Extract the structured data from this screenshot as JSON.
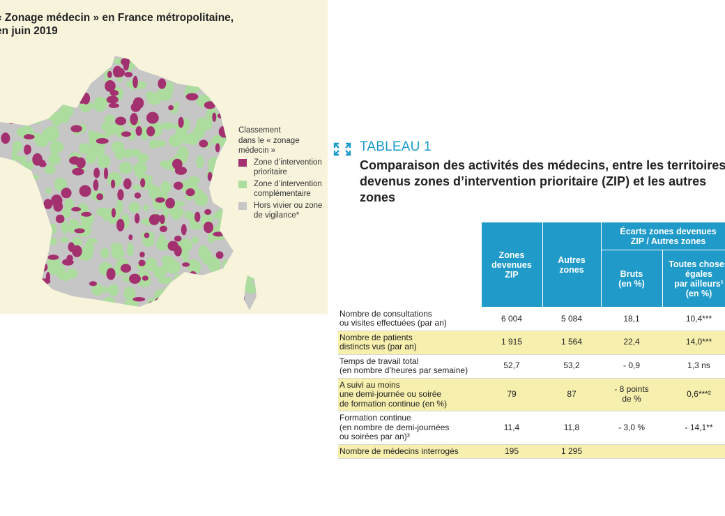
{
  "map_panel": {
    "title": [
      "« Zonage médecin » en France métropolitaine,",
      "en juin 2019"
    ],
    "legend": {
      "heading": [
        "Classement",
        "dans le « zonage",
        "médecin »"
      ],
      "items": [
        {
          "label": [
            "Zone d’intervention",
            "prioritaire"
          ],
          "color": "#a3306f"
        },
        {
          "label": [
            "Zone d’intervention",
            "complémentaire"
          ],
          "color": "#acdc9e"
        },
        {
          "label": [
            "Hors vivier ou zone",
            "de vigilance*"
          ],
          "color": "#c6c6c6"
        }
      ]
    }
  },
  "table_panel": {
    "label": "TABLEAU 1",
    "title": [
      "Comparaison des activités des médecins, entre les territoires",
      "devenus zones d’intervention prioritaire (ZIP) et les autres",
      "zones"
    ],
    "table": {
      "header": {
        "zip": [
          "Zones",
          "devenues",
          "ZIP"
        ],
        "autres": [
          "Autres",
          "zones"
        ],
        "group": [
          "Écarts zones devenues",
          "ZIP / Autres zones"
        ],
        "bruts": [
          "Bruts",
          "(en %)"
        ],
        "toutes": [
          "Toutes choses",
          "égales",
          "par ailleurs¹",
          "(en %)"
        ]
      },
      "rows": [
        {
          "label": [
            "Nombre de consultations",
            "ou visites effectuées (par an)"
          ],
          "cells": [
            "6 004",
            "5 084",
            "18,1",
            "10,4***"
          ]
        },
        {
          "label": [
            "Nombre de patients",
            "distincts vus (par an)"
          ],
          "cells": [
            "1 915",
            "1 564",
            "22,4",
            "14,0***"
          ]
        },
        {
          "label": [
            "Temps de travail total",
            "(en nombre d’heures par semaine)"
          ],
          "cells": [
            "52,7",
            "53,2",
            "- 0,9",
            "1,3 ns"
          ]
        },
        {
          "label": [
            "A suivi au moins",
            "une demi-journée ou soirée",
            "de formation continue (en %)"
          ],
          "cells": [
            "79",
            "87",
            "- 8 points de %",
            "0,6***²"
          ]
        },
        {
          "label": [
            "Formation continue",
            "(en nombre de demi-journées",
            "ou soirées par an)³"
          ],
          "cells": [
            "11,4",
            "11,8",
            "- 3,0 %",
            "- 14,1**"
          ]
        },
        {
          "label": [
            "Nombre de médecins interrogés"
          ],
          "cells": [
            "195",
            "1 295"
          ]
        }
      ]
    }
  }
}
